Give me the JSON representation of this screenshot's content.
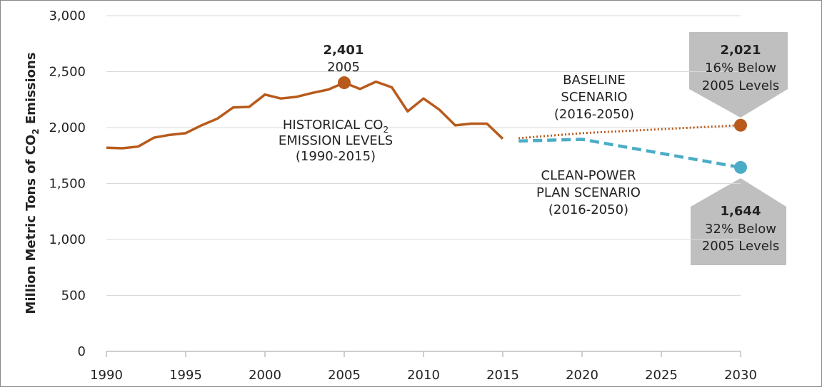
{
  "chart_data": {
    "type": "line",
    "y_label": [
      "Million Metric Tons of CO",
      "2",
      " Emissions"
    ],
    "xlim": [
      1990,
      2030
    ],
    "xticks": [
      1990,
      1995,
      2000,
      2005,
      2010,
      2015,
      2020,
      2025,
      2030
    ],
    "ylim": [
      0,
      3000
    ],
    "yticks": [
      0,
      500,
      {
        "value": 1000,
        "label": "1,000"
      },
      {
        "value": 1500,
        "label": "1,500"
      },
      {
        "value": 2000,
        "label": "2,000"
      },
      {
        "value": 2500,
        "label": "2,500"
      },
      {
        "value": 3000,
        "label": "3,000"
      }
    ],
    "grid": true,
    "series": [
      {
        "color": "#b85a1b",
        "style": "solid",
        "x": [
          1990,
          1991,
          1992,
          1993,
          1994,
          1995,
          1996,
          1997,
          1998,
          1999,
          2000,
          2001,
          2002,
          2003,
          2004,
          2005,
          2006,
          2007,
          2008,
          2009,
          2010,
          2011,
          2012,
          2013,
          2014,
          2015
        ],
        "values": [
          1820,
          1815,
          1830,
          1910,
          1935,
          1950,
          2020,
          2080,
          2180,
          2185,
          2295,
          2260,
          2275,
          2310,
          2340,
          2401,
          2345,
          2410,
          2360,
          2145,
          2260,
          2160,
          2020,
          2035,
          2035,
          1900
        ],
        "value_labels": [
          null,
          null,
          null,
          null,
          null,
          null,
          null,
          null,
          null,
          null,
          null,
          null,
          null,
          null,
          null,
          "2,401",
          null,
          null,
          null,
          null,
          null,
          null,
          null,
          null,
          null,
          null
        ],
        "marker_at": [
          15
        ]
      },
      {
        "color": "#b85a1b",
        "style": "dotted",
        "x": [
          2016,
          2020,
          2030
        ],
        "values": [
          1905,
          1950,
          2021
        ],
        "value_labels": [
          null,
          null,
          "2,021"
        ],
        "marker_at": [
          2
        ]
      },
      {
        "color": "#4bacc6",
        "style": "dashed",
        "x": [
          2016,
          2020,
          2030
        ],
        "values": [
          1880,
          1895,
          1644
        ],
        "value_labels": [
          null,
          null,
          "1,644"
        ],
        "marker_at": [
          2
        ]
      }
    ],
    "annotations": [
      {
        "lines": [
          [
            "2005"
          ]
        ]
      },
      {
        "lines": [
          [
            "HISTORICAL CO",
            "2"
          ],
          [
            "EMISSION LEVELS"
          ],
          [
            "(1990-2015)"
          ]
        ]
      },
      {
        "lines": [
          [
            "BASELINE"
          ],
          [
            "SCENARIO"
          ],
          [
            "(2016-2050)"
          ]
        ]
      },
      {
        "lines": [
          [
            "CLEAN-POWER"
          ],
          [
            "PLAN SCENARIO"
          ],
          [
            "(2016-2050)"
          ]
        ]
      },
      {
        "lines": [
          [
            "16% Below"
          ],
          [
            "2005 Levels"
          ]
        ]
      },
      {
        "lines": [
          [
            "32% Below"
          ],
          [
            "2005 Levels"
          ]
        ]
      }
    ]
  }
}
